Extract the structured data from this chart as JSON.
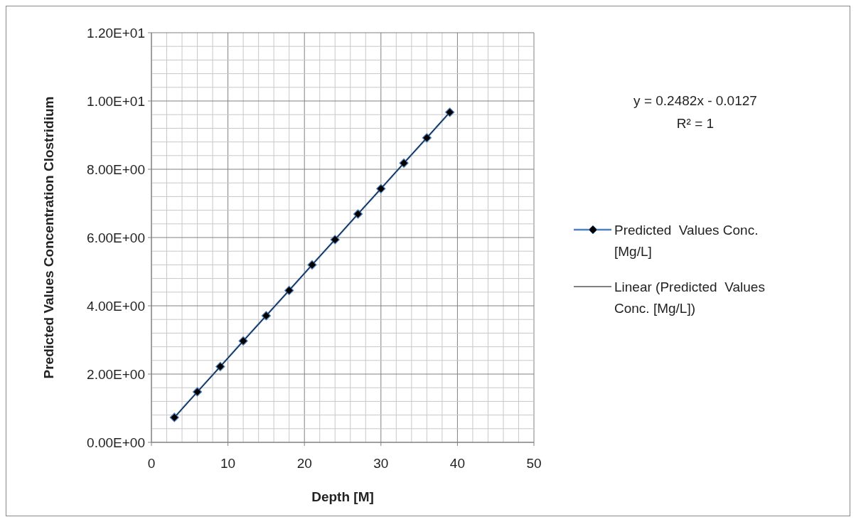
{
  "chart_data": {
    "type": "line",
    "xlabel": "Depth [M]",
    "ylabel": "Predicted Values Concentration Clostridium",
    "x": [
      3,
      6,
      9,
      12,
      15,
      18,
      21,
      24,
      27,
      30,
      33,
      36,
      39
    ],
    "series": [
      {
        "name": "Predicted  Values Conc. [Mg/L]",
        "color": "#4f81bd",
        "marker": "diamond",
        "values": [
          0.73,
          1.48,
          2.22,
          2.97,
          3.71,
          4.45,
          5.2,
          5.94,
          6.69,
          7.43,
          8.18,
          8.92,
          9.67
        ]
      },
      {
        "name": "Linear (Predicted  Values Conc. [Mg/L])",
        "type": "line",
        "color": "#000000",
        "marker": "none",
        "x": [
          3,
          39
        ],
        "values": [
          0.73,
          9.67
        ]
      }
    ],
    "xlim": [
      0,
      50
    ],
    "xticks": [
      0,
      {
        "value": 2,
        "label": null
      },
      {
        "value": 4,
        "label": null
      },
      {
        "value": 6,
        "label": null
      },
      {
        "value": 8,
        "label": null
      },
      10,
      {
        "value": 12,
        "label": null
      },
      {
        "value": 14,
        "label": null
      },
      {
        "value": 16,
        "label": null
      },
      {
        "value": 18,
        "label": null
      },
      20,
      {
        "value": 22,
        "label": null
      },
      {
        "value": 24,
        "label": null
      },
      {
        "value": 26,
        "label": null
      },
      {
        "value": 28,
        "label": null
      },
      30,
      {
        "value": 32,
        "label": null
      },
      {
        "value": 34,
        "label": null
      },
      {
        "value": 36,
        "label": null
      },
      {
        "value": 38,
        "label": null
      },
      40,
      {
        "value": 42,
        "label": null
      },
      {
        "value": 44,
        "label": null
      },
      {
        "value": 46,
        "label": null
      },
      {
        "value": 48,
        "label": null
      },
      50
    ],
    "ylim": [
      0,
      12
    ],
    "yticks": [
      {
        "value": 0,
        "label": "0.00E+00"
      },
      {
        "value": 0.4,
        "label": null
      },
      {
        "value": 0.8,
        "label": null
      },
      {
        "value": 1.2,
        "label": null
      },
      {
        "value": 1.6,
        "label": null
      },
      {
        "value": 2,
        "label": "2.00E+00"
      },
      {
        "value": 2.4,
        "label": null
      },
      {
        "value": 2.8,
        "label": null
      },
      {
        "value": 3.2,
        "label": null
      },
      {
        "value": 3.6,
        "label": null
      },
      {
        "value": 4,
        "label": "4.00E+00"
      },
      {
        "value": 4.4,
        "label": null
      },
      {
        "value": 4.8,
        "label": null
      },
      {
        "value": 5.2,
        "label": null
      },
      {
        "value": 5.6,
        "label": null
      },
      {
        "value": 6,
        "label": "6.00E+00"
      },
      {
        "value": 6.4,
        "label": null
      },
      {
        "value": 6.8,
        "label": null
      },
      {
        "value": 7.2,
        "label": null
      },
      {
        "value": 7.6,
        "label": null
      },
      {
        "value": 8,
        "label": "8.00E+00"
      },
      {
        "value": 8.4,
        "label": null
      },
      {
        "value": 8.8,
        "label": null
      },
      {
        "value": 9.2,
        "label": null
      },
      {
        "value": 9.6,
        "label": null
      },
      {
        "value": 10,
        "label": "1.00E+01"
      },
      {
        "value": 10.4,
        "label": null
      },
      {
        "value": 10.8,
        "label": null
      },
      {
        "value": 11.2,
        "label": null
      },
      {
        "value": 11.6,
        "label": null
      },
      {
        "value": 12,
        "label": "1.20E+01"
      }
    ],
    "grid": true,
    "legend": "right",
    "annotations": [
      "y = 0.2482x - 0.0127",
      "R² = 1"
    ]
  }
}
